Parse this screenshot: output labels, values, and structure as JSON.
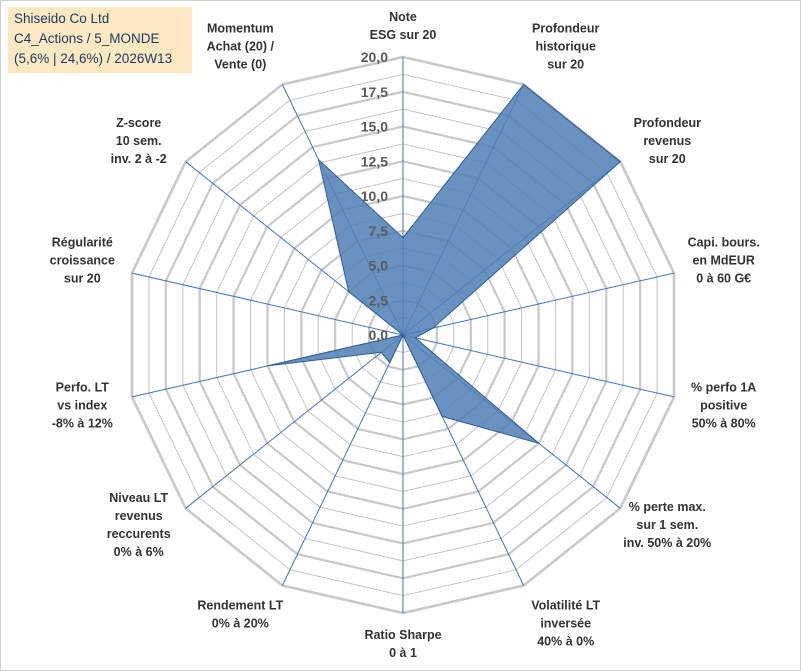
{
  "title_box": {
    "line1": "Shiseido Co Ltd",
    "line2": "C4_Actions / 5_MONDE",
    "line3": "(5,6% | 24,6%) / 2026W13"
  },
  "chart_data": {
    "type": "radar",
    "rlim": [
      0,
      20
    ],
    "ticks": [
      "0,0",
      "2,5",
      "5,0",
      "7,5",
      "10,0",
      "12,5",
      "15,0",
      "17,5",
      "20,0"
    ],
    "grid": true,
    "axes": [
      {
        "label": [
          "Note",
          "ESG sur 20"
        ],
        "value": 7.0
      },
      {
        "label": [
          "Profondeur",
          "historique",
          "sur 20"
        ],
        "value": 20.0
      },
      {
        "label": [
          "Profondeur",
          "revenus",
          "sur 20"
        ],
        "value": 20.0
      },
      {
        "label": [
          "Capi. bours.",
          "en MdEUR",
          "0 à 60 G€"
        ],
        "value": 2.2
      },
      {
        "label": [
          "% perfo 1A",
          "positive",
          "50% à 80%"
        ],
        "value": 0.9
      },
      {
        "label": [
          "% perte max.",
          "sur 1 sem.",
          "inv. 50% à 20%"
        ],
        "value": 12.5
      },
      {
        "label": [
          "Volatilité LT",
          "inversée",
          "40% à 0%"
        ],
        "value": 6.5
      },
      {
        "label": [
          "Ratio Sharpe",
          "0 à 1"
        ],
        "value": 0.0
      },
      {
        "label": [
          "Rendement LT",
          "0% à 20%"
        ],
        "value": 2.2
      },
      {
        "label": [
          "Niveau LT",
          "revenus",
          "reccurents",
          "0% à 6%"
        ],
        "value": 2.0
      },
      {
        "label": [
          "Perfo. LT",
          "vs index",
          "-8% à 12%"
        ],
        "value": 10.0
      },
      {
        "label": [
          "Régularité",
          "croissance",
          "sur 20"
        ],
        "value": 0.0
      },
      {
        "label": [
          "Z-score",
          "10 sem.",
          "inv. 2 à -2"
        ],
        "value": 5.0
      },
      {
        "label": [
          "Momentum",
          "Achat (20) /",
          "Vente (0)"
        ],
        "value": 14.0
      }
    ],
    "colors": {
      "fill": "#4f7fb6",
      "stroke": "#2e5d95",
      "grid": "#c8c8c8",
      "spoke": "#4472c4"
    }
  }
}
